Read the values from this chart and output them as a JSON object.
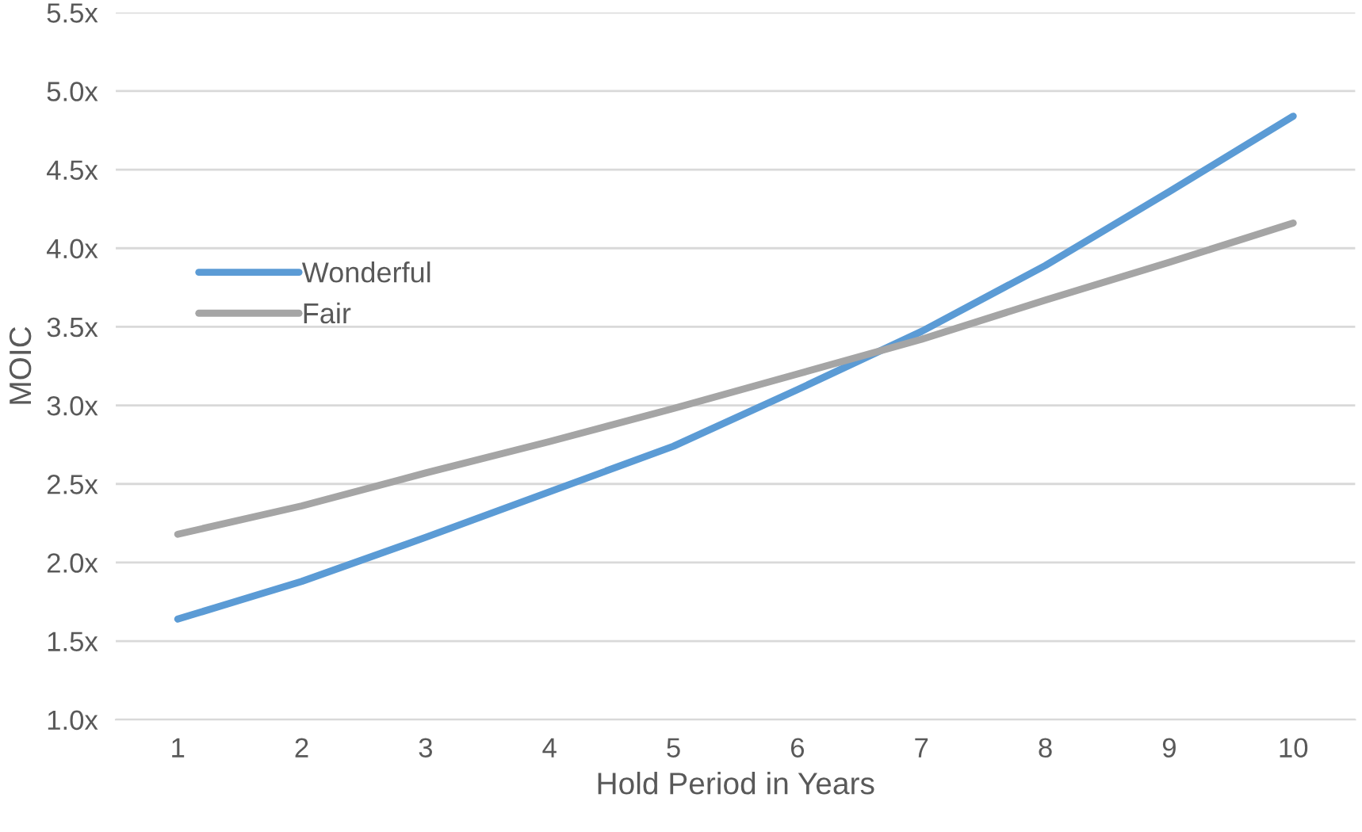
{
  "chart_data": {
    "type": "line",
    "xlabel": "Hold Period in Years",
    "ylabel": "MOIC",
    "categories": [
      "1",
      "2",
      "3",
      "4",
      "5",
      "6",
      "7",
      "8",
      "9",
      "10"
    ],
    "series": [
      {
        "name": "Wonderful",
        "color": "#5b9bd5",
        "values": [
          1.64,
          1.88,
          2.16,
          2.45,
          2.74,
          3.1,
          3.47,
          3.89,
          4.36,
          4.84
        ]
      },
      {
        "name": "Fair",
        "color": "#a5a5a5",
        "values": [
          2.18,
          2.36,
          2.57,
          2.77,
          2.98,
          3.2,
          3.42,
          3.67,
          3.91,
          4.16
        ]
      }
    ],
    "ylim": [
      1.0,
      5.5
    ],
    "yticks": [
      {
        "value": 1.0,
        "label": "1.0x"
      },
      {
        "value": 1.5,
        "label": "1.5x"
      },
      {
        "value": 2.0,
        "label": "2.0x"
      },
      {
        "value": 2.5,
        "label": "2.5x"
      },
      {
        "value": 3.0,
        "label": "3.0x"
      },
      {
        "value": 3.5,
        "label": "3.5x"
      },
      {
        "value": 4.0,
        "label": "4.0x"
      },
      {
        "value": 4.5,
        "label": "4.5x"
      },
      {
        "value": 5.0,
        "label": "5.0x"
      },
      {
        "value": 5.5,
        "label": "5.5x"
      }
    ],
    "grid": "y",
    "legend": "center left",
    "line_style": "solid",
    "marker": "none"
  }
}
